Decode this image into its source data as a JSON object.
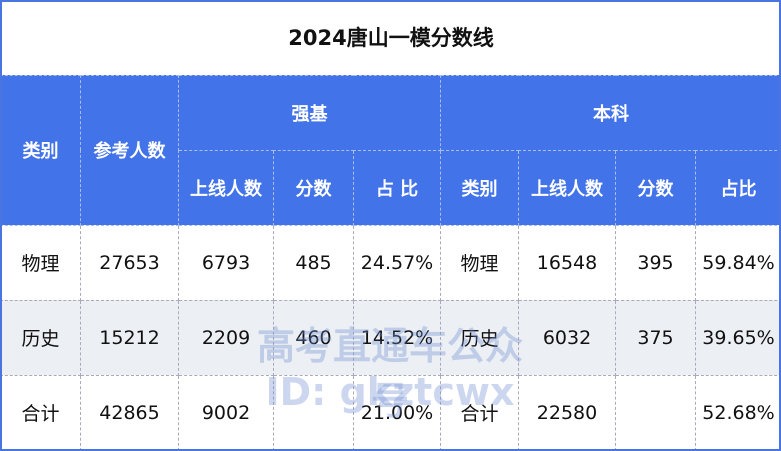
{
  "title": "2024唐山一模分数线",
  "headers": {
    "category": "类别",
    "participants": "参考人数",
    "qiangji": "强基",
    "benke": "本科",
    "qj_sub": [
      "上线人数",
      "分数",
      "占 比"
    ],
    "bk_sub": [
      "类别",
      "上线人数",
      "分数",
      "占比"
    ]
  },
  "rows": [
    [
      "物理",
      "27653",
      "6793",
      "485",
      "24.57%",
      "物理",
      "16548",
      "395",
      "59.84%"
    ],
    [
      "历史",
      "15212",
      "2209",
      "460",
      "14.52%",
      "历史",
      "6032",
      "375",
      "39.65%"
    ],
    [
      "合计",
      "42865",
      "9002",
      "",
      "21.00%",
      "合计",
      "22580",
      "",
      "52.68%"
    ]
  ],
  "watermark": {
    "line1": "高考直通车公众号",
    "line2": "ID: gkztcwx"
  },
  "colors": {
    "header": "#4373e9",
    "alt_row": "#eceff3"
  }
}
